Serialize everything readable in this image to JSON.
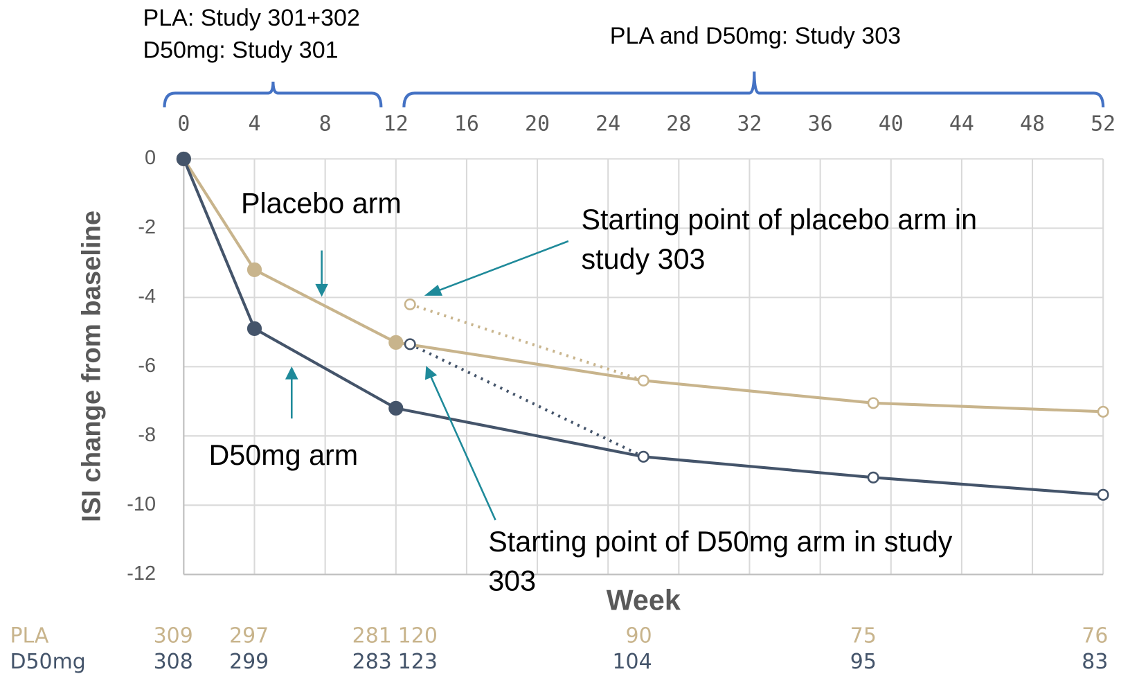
{
  "chart_data": {
    "type": "line",
    "headers": [
      "PLA: Study 301+302",
      "D50mg: Study 301",
      "PLA and D50mg: Study 303"
    ],
    "xlabel": "Week",
    "ylabel": "ISI change from baseline",
    "xlim": [
      0,
      52
    ],
    "ylim": [
      -12,
      0
    ],
    "xticks": [
      0,
      4,
      8,
      12,
      16,
      20,
      24,
      28,
      32,
      36,
      40,
      44,
      48,
      52
    ],
    "yticks": [
      0,
      -2,
      -4,
      -6,
      -8,
      -10,
      -12
    ],
    "grid": true,
    "series": [
      {
        "name": "PLA",
        "color": "#c8b48c",
        "x": [
          0,
          4,
          12,
          26,
          39,
          52
        ],
        "values": [
          0,
          -3.2,
          -5.3,
          -6.4,
          -7.05,
          -7.3
        ],
        "marker_fill": [
          "filled",
          "filled",
          "filled",
          "open",
          "open",
          "open"
        ],
        "n": [
          309,
          297,
          281,
          120,
          90,
          75,
          76
        ]
      },
      {
        "name": "D50mg",
        "color": "#44546a",
        "x": [
          0,
          4,
          12,
          26,
          39,
          52
        ],
        "values": [
          0,
          -4.9,
          -7.2,
          -8.6,
          -9.2,
          -9.7
        ],
        "marker_fill": [
          "filled",
          "filled",
          "filled",
          "open",
          "open",
          "open"
        ],
        "n": [
          308,
          299,
          283,
          123,
          104,
          95,
          83
        ]
      }
    ],
    "study303_start": [
      {
        "color": "#c8b48c",
        "x": [
          12.8,
          26
        ],
        "values": [
          -4.2,
          -6.4
        ]
      },
      {
        "color": "#44546a",
        "x": [
          12.8,
          26
        ],
        "values": [
          -5.35,
          -8.6
        ]
      }
    ],
    "annotations": [
      {
        "lines": [
          "Placebo arm"
        ]
      },
      {
        "lines": [
          "D50mg arm"
        ]
      },
      {
        "lines": [
          "Starting point of placebo arm in",
          "study 303"
        ]
      },
      {
        "lines": [
          "Starting point of D50mg arm in study",
          "303"
        ]
      }
    ]
  }
}
